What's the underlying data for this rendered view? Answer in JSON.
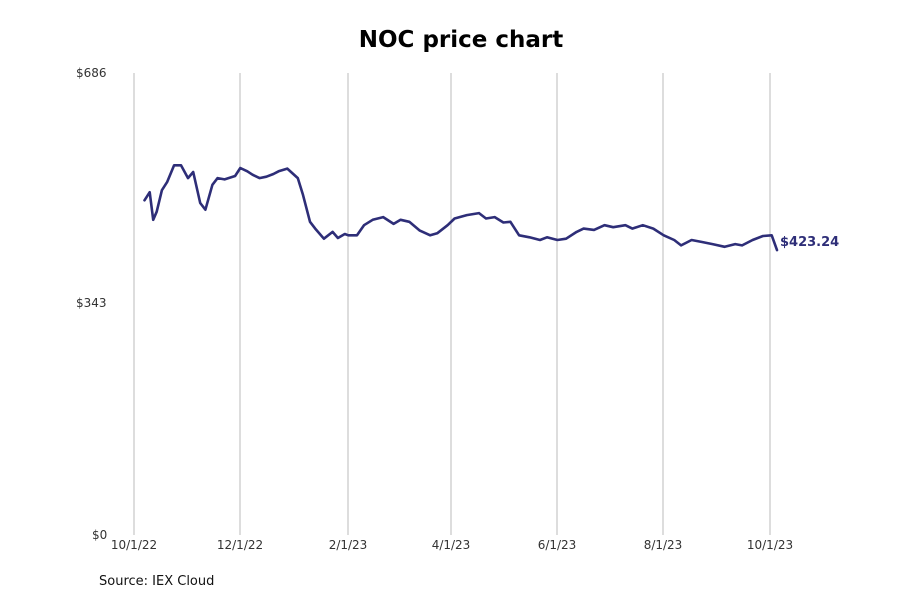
{
  "chart": {
    "title": "NOC price chart",
    "source": "Source: IEX Cloud",
    "end_label": "$423.24",
    "y_ticks": [
      "$686",
      "$343",
      "$0"
    ],
    "x_ticks": [
      "10/1/22",
      "12/1/22",
      "2/1/23",
      "4/1/23",
      "6/1/23",
      "8/1/23",
      "10/1/23"
    ],
    "line_color": "#2e2e78",
    "grid_color": "#bbbbbb"
  },
  "chart_data": {
    "type": "line",
    "title": "NOC price chart",
    "xlabel": "",
    "ylabel": "",
    "ylim": [
      0,
      686
    ],
    "y_ticks": [
      0,
      343,
      686
    ],
    "x_ticks": [
      "10/1/22",
      "12/1/22",
      "2/1/23",
      "4/1/23",
      "6/1/23",
      "8/1/23",
      "10/1/23"
    ],
    "grid": "vertical lines at x ticks",
    "annotation": "$423.24",
    "source": "Source: IEX Cloud",
    "series": [
      {
        "name": "NOC",
        "color": "#2e2e78",
        "x": [
          "10/7/22",
          "10/10/22",
          "10/12/22",
          "10/14/22",
          "10/17/22",
          "10/20/22",
          "10/24/22",
          "10/28/22",
          "11/1/22",
          "11/4/22",
          "11/8/22",
          "11/11/22",
          "11/15/22",
          "11/18/22",
          "11/22/22",
          "11/28/22",
          "12/1/22",
          "12/5/22",
          "12/8/22",
          "12/12/22",
          "12/16/22",
          "12/20/22",
          "12/23/22",
          "12/28/22",
          "1/3/23",
          "1/6/23",
          "1/10/23",
          "1/13/23",
          "1/18/23",
          "1/23/23",
          "1/26/23",
          "1/30/23",
          "2/1/23",
          "2/6/23",
          "2/10/23",
          "2/15/23",
          "2/21/23",
          "2/27/23",
          "3/3/23",
          "3/8/23",
          "3/14/23",
          "3/20/23",
          "3/24/23",
          "3/30/23",
          "4/3/23",
          "4/10/23",
          "4/17/23",
          "4/21/23",
          "4/26/23",
          "5/1/23",
          "5/5/23",
          "5/10/23",
          "5/16/23",
          "5/22/23",
          "5/26/23",
          "6/1/23",
          "6/6/23",
          "6/12/23",
          "6/16/23",
          "6/22/23",
          "6/28/23",
          "7/3/23",
          "7/10/23",
          "7/14/23",
          "7/20/23",
          "7/26/23",
          "8/1/23",
          "8/7/23",
          "8/11/23",
          "8/17/23",
          "8/23/23",
          "8/29/23",
          "9/5/23",
          "9/11/23",
          "9/15/23",
          "9/21/23",
          "9/27/23",
          "10/2/23",
          "10/5/23"
        ],
        "values": [
          497,
          509,
          468,
          480,
          512,
          524,
          549,
          549,
          530,
          539,
          493,
          483,
          520,
          530,
          528,
          533,
          545,
          540,
          535,
          530,
          532,
          536,
          540,
          544,
          530,
          505,
          465,
          455,
          440,
          450,
          441,
          447,
          445,
          445,
          460,
          468,
          472,
          462,
          468,
          465,
          452,
          445,
          448,
          460,
          470,
          475,
          478,
          470,
          472,
          464,
          465,
          445,
          442,
          438,
          442,
          438,
          440,
          450,
          455,
          453,
          460,
          457,
          460,
          455,
          460,
          455,
          445,
          438,
          430,
          438,
          435,
          432,
          428,
          432,
          430,
          438,
          444,
          445,
          423
        ]
      }
    ]
  }
}
